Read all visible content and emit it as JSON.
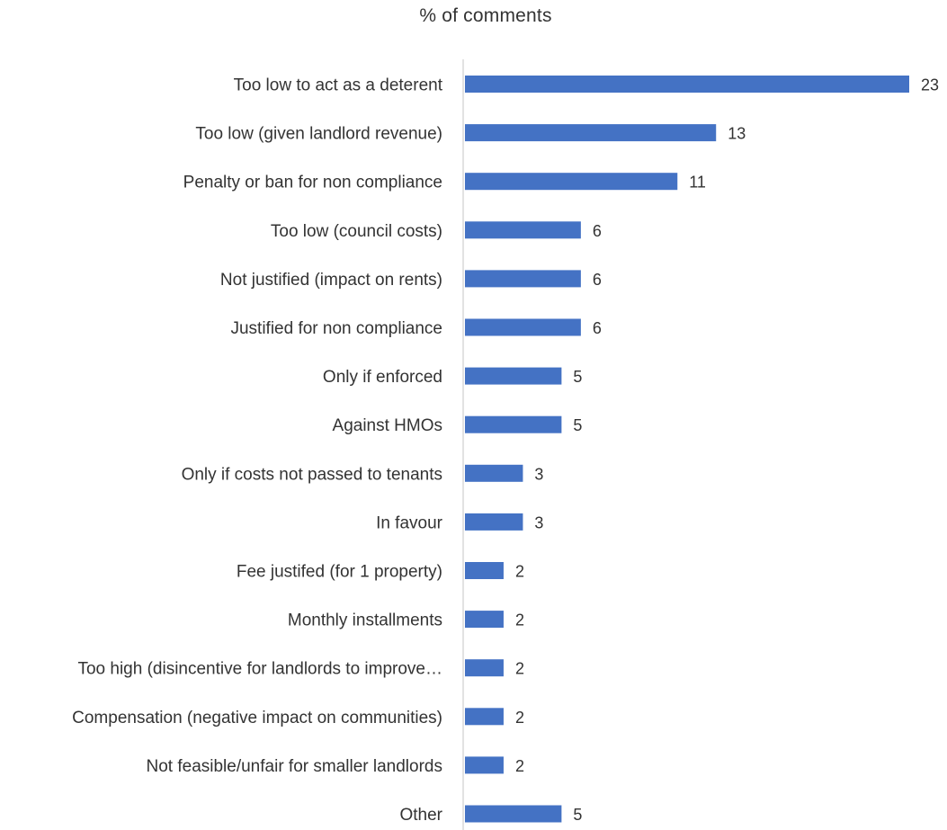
{
  "chart_data": {
    "type": "bar",
    "orientation": "horizontal",
    "title": "% of comments",
    "categories": [
      "Too low to act as a deterent",
      "Too low (given landlord revenue)",
      "Penalty or ban for non compliance",
      "Too low (council costs)",
      "Not justified (impact on rents)",
      "Justified for non compliance",
      "Only if enforced",
      "Against HMOs",
      "Only if costs not passed to tenants",
      "In favour",
      "Fee justifed (for 1 property)",
      "Monthly installments",
      "Too high (disincentive for landlords to improve…",
      "Compensation (negative impact on communities)",
      "Not feasible/unfair for smaller landlords",
      "Other"
    ],
    "values": [
      23,
      13,
      11,
      6,
      6,
      6,
      5,
      5,
      3,
      3,
      2,
      2,
      2,
      2,
      2,
      5
    ],
    "data_labels": [
      "23",
      "13",
      "11",
      "6",
      "6",
      "6",
      "5",
      "5",
      "3",
      "3",
      "2",
      "2",
      "2",
      "2",
      "2",
      "5"
    ],
    "xlim": [
      0,
      23
    ],
    "grid": false,
    "legend": "none",
    "colors": {
      "bar": "#4472C4",
      "axis": "#D9D9D9",
      "text": "#333333"
    }
  }
}
